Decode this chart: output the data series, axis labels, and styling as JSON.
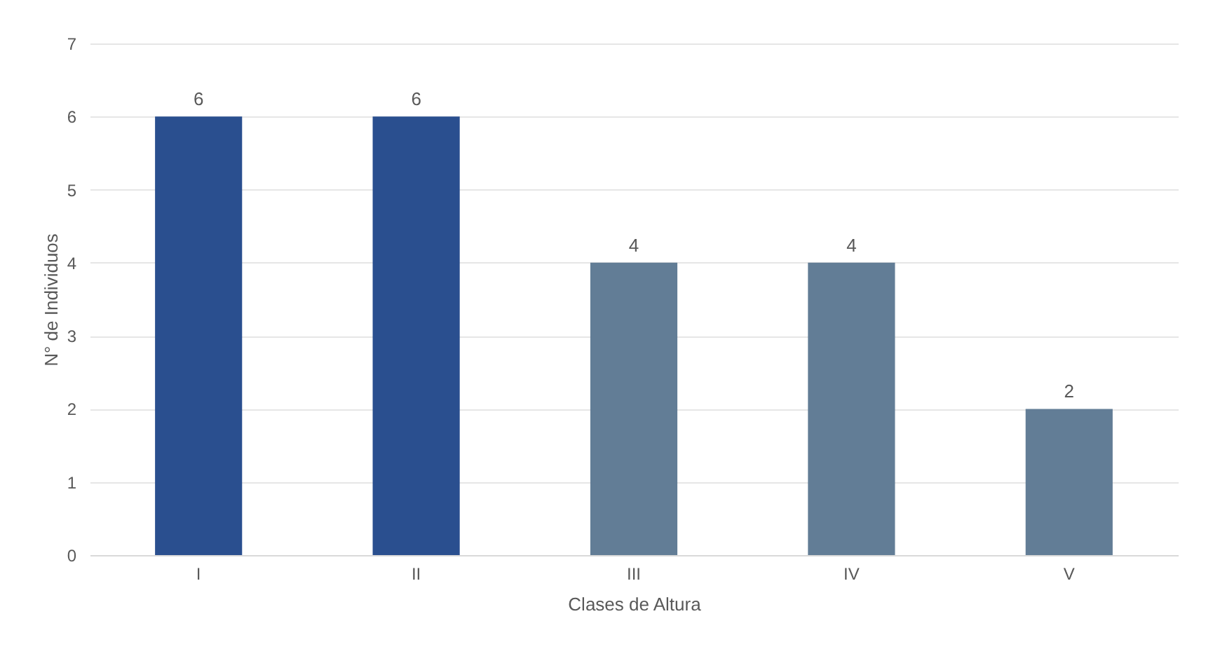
{
  "chart_data": {
    "type": "bar",
    "xlabel": "Clases de Altura",
    "ylabel": "N° de Individuos",
    "categories": [
      "I",
      "II",
      "III",
      "IV",
      "V"
    ],
    "values": [
      6,
      6,
      4,
      4,
      2
    ],
    "colors": [
      "#2a4f8f",
      "#2a4f8f",
      "#627d96",
      "#627d96",
      "#627d96"
    ],
    "ylim": [
      0,
      7
    ],
    "yticks": [
      0,
      1,
      2,
      3,
      4,
      5,
      6,
      7
    ],
    "grid": "y",
    "data_labels": true
  }
}
